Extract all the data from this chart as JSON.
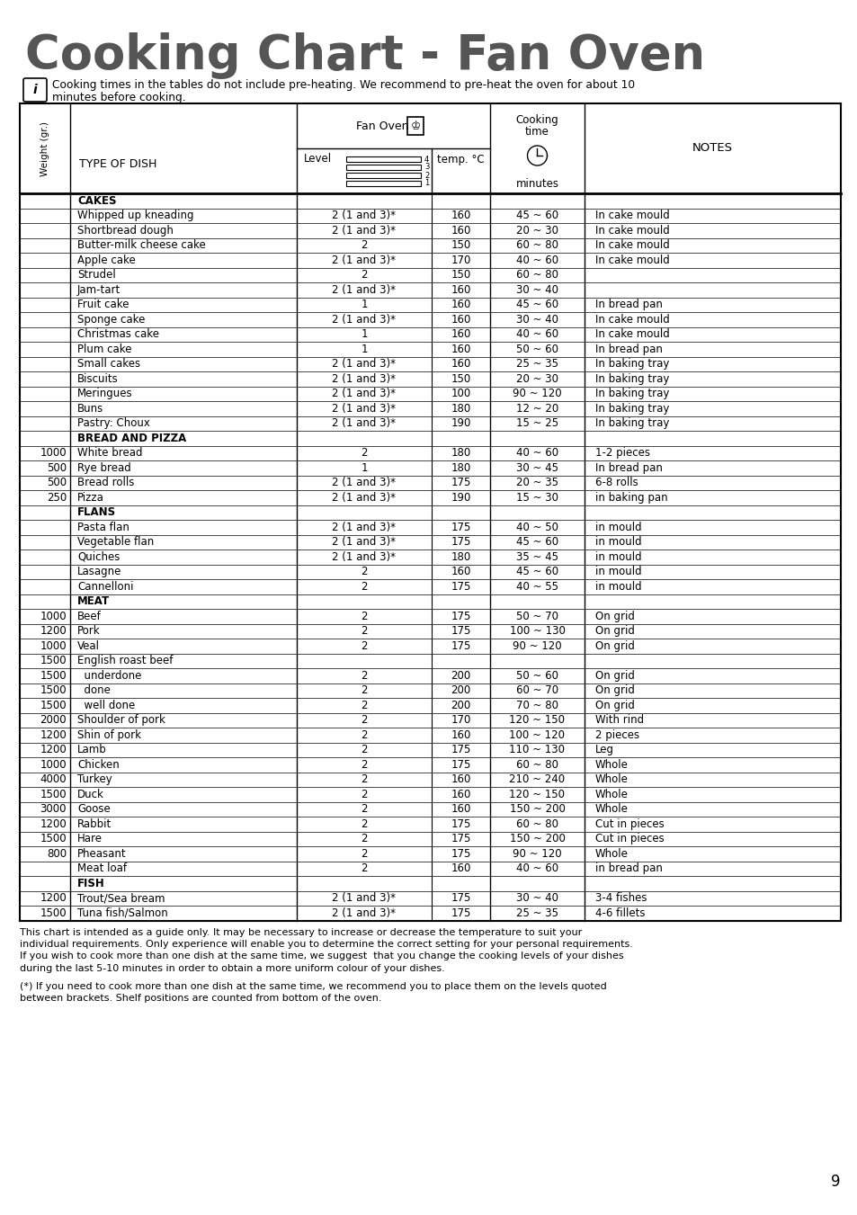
{
  "title": "Cooking Chart - Fan Oven",
  "info_line1": "Cooking times in the tables do not include pre-heating. We recommend to pre-heat the oven for about 10",
  "info_line2": "minutes before cooking.",
  "rows": [
    {
      "weight": "",
      "dish": "CAKES",
      "level": "",
      "temp": "",
      "time": "",
      "notes": "",
      "section": true
    },
    {
      "weight": "",
      "dish": "Whipped up kneading",
      "level": "2 (1 and 3)*",
      "temp": "160",
      "time": "45 ~ 60",
      "notes": "In cake mould"
    },
    {
      "weight": "",
      "dish": "Shortbread dough",
      "level": "2 (1 and 3)*",
      "temp": "160",
      "time": "20 ~ 30",
      "notes": "In cake mould"
    },
    {
      "weight": "",
      "dish": "Butter-milk cheese cake",
      "level": "2",
      "temp": "150",
      "time": "60 ~ 80",
      "notes": "In cake mould"
    },
    {
      "weight": "",
      "dish": "Apple cake",
      "level": "2 (1 and 3)*",
      "temp": "170",
      "time": "40 ~ 60",
      "notes": "In cake mould"
    },
    {
      "weight": "",
      "dish": "Strudel",
      "level": "2",
      "temp": "150",
      "time": "60 ~ 80",
      "notes": ""
    },
    {
      "weight": "",
      "dish": "Jam-tart",
      "level": "2 (1 and 3)*",
      "temp": "160",
      "time": "30 ~ 40",
      "notes": ""
    },
    {
      "weight": "",
      "dish": "Fruit cake",
      "level": "1",
      "temp": "160",
      "time": "45 ~ 60",
      "notes": "In bread pan"
    },
    {
      "weight": "",
      "dish": "Sponge cake",
      "level": "2 (1 and 3)*",
      "temp": "160",
      "time": "30 ~ 40",
      "notes": "In cake mould"
    },
    {
      "weight": "",
      "dish": "Christmas cake",
      "level": "1",
      "temp": "160",
      "time": "40 ~ 60",
      "notes": "In cake mould"
    },
    {
      "weight": "",
      "dish": "Plum cake",
      "level": "1",
      "temp": "160",
      "time": "50 ~ 60",
      "notes": "In bread pan"
    },
    {
      "weight": "",
      "dish": "Small cakes",
      "level": "2 (1 and 3)*",
      "temp": "160",
      "time": "25 ~ 35",
      "notes": "In baking tray"
    },
    {
      "weight": "",
      "dish": "Biscuits",
      "level": "2 (1 and 3)*",
      "temp": "150",
      "time": "20 ~ 30",
      "notes": "In baking tray"
    },
    {
      "weight": "",
      "dish": "Meringues",
      "level": "2 (1 and 3)*",
      "temp": "100",
      "time": "90 ~ 120",
      "notes": "In baking tray"
    },
    {
      "weight": "",
      "dish": "Buns",
      "level": "2 (1 and 3)*",
      "temp": "180",
      "time": "12 ~ 20",
      "notes": "In baking tray"
    },
    {
      "weight": "",
      "dish": "Pastry: Choux",
      "level": "2 (1 and 3)*",
      "temp": "190",
      "time": "15 ~ 25",
      "notes": "In baking tray"
    },
    {
      "weight": "",
      "dish": "BREAD AND PIZZA",
      "level": "",
      "temp": "",
      "time": "",
      "notes": "",
      "section": true
    },
    {
      "weight": "1000",
      "dish": "White bread",
      "level": "2",
      "temp": "180",
      "time": "40 ~ 60",
      "notes": "1-2 pieces"
    },
    {
      "weight": "500",
      "dish": "Rye bread",
      "level": "1",
      "temp": "180",
      "time": "30 ~ 45",
      "notes": "In bread pan"
    },
    {
      "weight": "500",
      "dish": "Bread rolls",
      "level": "2 (1 and 3)*",
      "temp": "175",
      "time": "20 ~ 35",
      "notes": "6-8 rolls"
    },
    {
      "weight": "250",
      "dish": "Pizza",
      "level": "2 (1 and 3)*",
      "temp": "190",
      "time": "15 ~ 30",
      "notes": "in baking pan"
    },
    {
      "weight": "",
      "dish": "FLANS",
      "level": "",
      "temp": "",
      "time": "",
      "notes": "",
      "section": true
    },
    {
      "weight": "",
      "dish": "Pasta flan",
      "level": "2 (1 and 3)*",
      "temp": "175",
      "time": "40 ~ 50",
      "notes": "in mould"
    },
    {
      "weight": "",
      "dish": "Vegetable flan",
      "level": "2 (1 and 3)*",
      "temp": "175",
      "time": "45 ~ 60",
      "notes": "in mould"
    },
    {
      "weight": "",
      "dish": "Quiches",
      "level": "2 (1 and 3)*",
      "temp": "180",
      "time": "35 ~ 45",
      "notes": "in mould"
    },
    {
      "weight": "",
      "dish": "Lasagne",
      "level": "2",
      "temp": "160",
      "time": "45 ~ 60",
      "notes": "in mould"
    },
    {
      "weight": "",
      "dish": "Cannelloni",
      "level": "2",
      "temp": "175",
      "time": "40 ~ 55",
      "notes": "in mould"
    },
    {
      "weight": "",
      "dish": "MEAT",
      "level": "",
      "temp": "",
      "time": "",
      "notes": "",
      "section": true
    },
    {
      "weight": "1000",
      "dish": "Beef",
      "level": "2",
      "temp": "175",
      "time": "50 ~ 70",
      "notes": "On grid"
    },
    {
      "weight": "1200",
      "dish": "Pork",
      "level": "2",
      "temp": "175",
      "time": "100 ~ 130",
      "notes": "On grid"
    },
    {
      "weight": "1000",
      "dish": "Veal",
      "level": "2",
      "temp": "175",
      "time": "90 ~ 120",
      "notes": "On grid"
    },
    {
      "weight": "1500",
      "dish": "English roast beef",
      "level": "",
      "temp": "",
      "time": "",
      "notes": ""
    },
    {
      "weight": "1500",
      "dish": "  underdone",
      "level": "2",
      "temp": "200",
      "time": "50 ~ 60",
      "notes": "On grid"
    },
    {
      "weight": "1500",
      "dish": "  done",
      "level": "2",
      "temp": "200",
      "time": "60 ~ 70",
      "notes": "On grid"
    },
    {
      "weight": "1500",
      "dish": "  well done",
      "level": "2",
      "temp": "200",
      "time": "70 ~ 80",
      "notes": "On grid"
    },
    {
      "weight": "2000",
      "dish": "Shoulder of pork",
      "level": "2",
      "temp": "170",
      "time": "120 ~ 150",
      "notes": "With rind"
    },
    {
      "weight": "1200",
      "dish": "Shin of pork",
      "level": "2",
      "temp": "160",
      "time": "100 ~ 120",
      "notes": "2 pieces"
    },
    {
      "weight": "1200",
      "dish": "Lamb",
      "level": "2",
      "temp": "175",
      "time": "110 ~ 130",
      "notes": "Leg"
    },
    {
      "weight": "1000",
      "dish": "Chicken",
      "level": "2",
      "temp": "175",
      "time": "60 ~ 80",
      "notes": "Whole"
    },
    {
      "weight": "4000",
      "dish": "Turkey",
      "level": "2",
      "temp": "160",
      "time": "210 ~ 240",
      "notes": "Whole"
    },
    {
      "weight": "1500",
      "dish": "Duck",
      "level": "2",
      "temp": "160",
      "time": "120 ~ 150",
      "notes": "Whole"
    },
    {
      "weight": "3000",
      "dish": "Goose",
      "level": "2",
      "temp": "160",
      "time": "150 ~ 200",
      "notes": "Whole"
    },
    {
      "weight": "1200",
      "dish": "Rabbit",
      "level": "2",
      "temp": "175",
      "time": "60 ~ 80",
      "notes": "Cut in pieces"
    },
    {
      "weight": "1500",
      "dish": "Hare",
      "level": "2",
      "temp": "175",
      "time": "150 ~ 200",
      "notes": "Cut in pieces"
    },
    {
      "weight": "800",
      "dish": "Pheasant",
      "level": "2",
      "temp": "175",
      "time": "90 ~ 120",
      "notes": "Whole"
    },
    {
      "weight": "",
      "dish": "Meat loaf",
      "level": "2",
      "temp": "160",
      "time": "40 ~ 60",
      "notes": "in bread pan"
    },
    {
      "weight": "",
      "dish": "FISH",
      "level": "",
      "temp": "",
      "time": "",
      "notes": "",
      "section": true
    },
    {
      "weight": "1200",
      "dish": "Trout/Sea bream",
      "level": "2 (1 and 3)*",
      "temp": "175",
      "time": "30 ~ 40",
      "notes": "3-4 fishes"
    },
    {
      "weight": "1500",
      "dish": "Tuna fish/Salmon",
      "level": "2 (1 and 3)*",
      "temp": "175",
      "time": "25 ~ 35",
      "notes": "4-6 fillets"
    }
  ],
  "footer1_lines": [
    "This chart is intended as a guide only. It may be necessary to increase or decrease the temperature to suit your",
    "individual requirements. Only experience will enable you to determine the correct setting for your personal requirements.",
    "If you wish to cook more than one dish at the same time, we suggest  that you change the cooking levels of your dishes",
    "during the last 5-10 minutes in order to obtain a more uniform colour of your dishes."
  ],
  "footer2_lines": [
    "(*) If you need to cook more than one dish at the same time, we recommend you to place them on the levels quoted",
    "between brackets. Shelf positions are counted from bottom of the oven."
  ],
  "page_number": "9",
  "title_color": "#555555",
  "text_color": "#000000",
  "bg_color": "#ffffff"
}
